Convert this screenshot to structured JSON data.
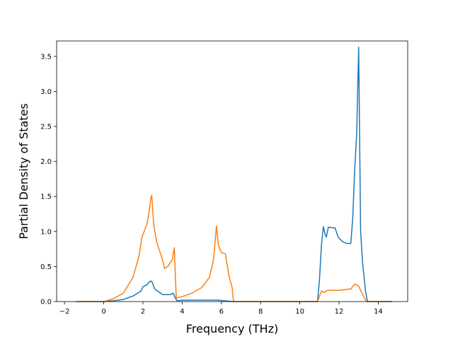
{
  "chart_data": {
    "type": "line",
    "title": "",
    "xlabel": "Frequency (THz)",
    "ylabel": "Partial Density of States",
    "xlim": [
      -2.4,
      15.5
    ],
    "ylim": [
      0,
      3.72
    ],
    "xticks": [
      -2,
      0,
      2,
      4,
      6,
      8,
      10,
      12,
      14
    ],
    "xtick_labels": [
      "−2",
      "0",
      "2",
      "4",
      "6",
      "8",
      "10",
      "12",
      "14"
    ],
    "yticks": [
      0,
      0.5,
      1.0,
      1.5,
      2.0,
      2.5,
      3.0,
      3.5
    ],
    "ytick_labels": [
      "0.0",
      "0.5",
      "1.0",
      "1.5",
      "2.0",
      "2.5",
      "3.0",
      "3.5"
    ],
    "grid": false,
    "legend": false,
    "series": [
      {
        "color": "#1f77b4",
        "points": [
          [
            -1.4,
            0
          ],
          [
            0,
            0
          ],
          [
            0.5,
            0.01
          ],
          [
            1.0,
            0.03
          ],
          [
            1.5,
            0.08
          ],
          [
            1.9,
            0.15
          ],
          [
            2.0,
            0.21
          ],
          [
            2.2,
            0.24
          ],
          [
            2.35,
            0.29
          ],
          [
            2.45,
            0.29
          ],
          [
            2.6,
            0.18
          ],
          [
            3.0,
            0.1
          ],
          [
            3.4,
            0.1
          ],
          [
            3.55,
            0.12
          ],
          [
            3.65,
            0.05
          ],
          [
            3.75,
            0.01
          ],
          [
            4.0,
            0.02
          ],
          [
            5.0,
            0.02
          ],
          [
            5.8,
            0.02
          ],
          [
            6.2,
            0.01
          ],
          [
            6.6,
            0
          ],
          [
            10.9,
            0
          ],
          [
            11.0,
            0.3
          ],
          [
            11.1,
            0.8
          ],
          [
            11.2,
            1.07
          ],
          [
            11.3,
            0.95
          ],
          [
            11.35,
            0.92
          ],
          [
            11.45,
            1.06
          ],
          [
            11.8,
            1.05
          ],
          [
            11.95,
            0.92
          ],
          [
            12.2,
            0.85
          ],
          [
            12.4,
            0.83
          ],
          [
            12.6,
            0.83
          ],
          [
            12.7,
            1.2
          ],
          [
            12.8,
            1.9
          ],
          [
            12.9,
            2.4
          ],
          [
            13.0,
            3.63
          ],
          [
            13.1,
            1.0
          ],
          [
            13.2,
            0.55
          ],
          [
            13.35,
            0.15
          ],
          [
            13.45,
            0
          ],
          [
            14.7,
            0
          ]
        ]
      },
      {
        "color": "#ff7f0e",
        "points": [
          [
            -1.4,
            0
          ],
          [
            0,
            0
          ],
          [
            0.5,
            0.04
          ],
          [
            1.0,
            0.12
          ],
          [
            1.5,
            0.35
          ],
          [
            1.8,
            0.65
          ],
          [
            1.95,
            0.92
          ],
          [
            2.2,
            1.1
          ],
          [
            2.3,
            1.25
          ],
          [
            2.4,
            1.47
          ],
          [
            2.45,
            1.52
          ],
          [
            2.55,
            1.1
          ],
          [
            2.7,
            0.85
          ],
          [
            2.9,
            0.68
          ],
          [
            3.0,
            0.6
          ],
          [
            3.1,
            0.47
          ],
          [
            3.3,
            0.51
          ],
          [
            3.5,
            0.6
          ],
          [
            3.6,
            0.77
          ],
          [
            3.65,
            0.4
          ],
          [
            3.7,
            0.05
          ],
          [
            4.0,
            0.07
          ],
          [
            4.5,
            0.12
          ],
          [
            5.0,
            0.2
          ],
          [
            5.4,
            0.35
          ],
          [
            5.6,
            0.6
          ],
          [
            5.75,
            1.08
          ],
          [
            5.85,
            0.8
          ],
          [
            6.0,
            0.7
          ],
          [
            6.2,
            0.68
          ],
          [
            6.4,
            0.35
          ],
          [
            6.55,
            0.2
          ],
          [
            6.62,
            0
          ],
          [
            10.9,
            0
          ],
          [
            11.1,
            0.15
          ],
          [
            11.25,
            0.13
          ],
          [
            11.4,
            0.16
          ],
          [
            11.8,
            0.16
          ],
          [
            12.0,
            0.16
          ],
          [
            12.3,
            0.17
          ],
          [
            12.6,
            0.18
          ],
          [
            12.8,
            0.25
          ],
          [
            13.0,
            0.22
          ],
          [
            13.2,
            0.1
          ],
          [
            13.4,
            0
          ],
          [
            14.7,
            0
          ]
        ]
      }
    ]
  }
}
